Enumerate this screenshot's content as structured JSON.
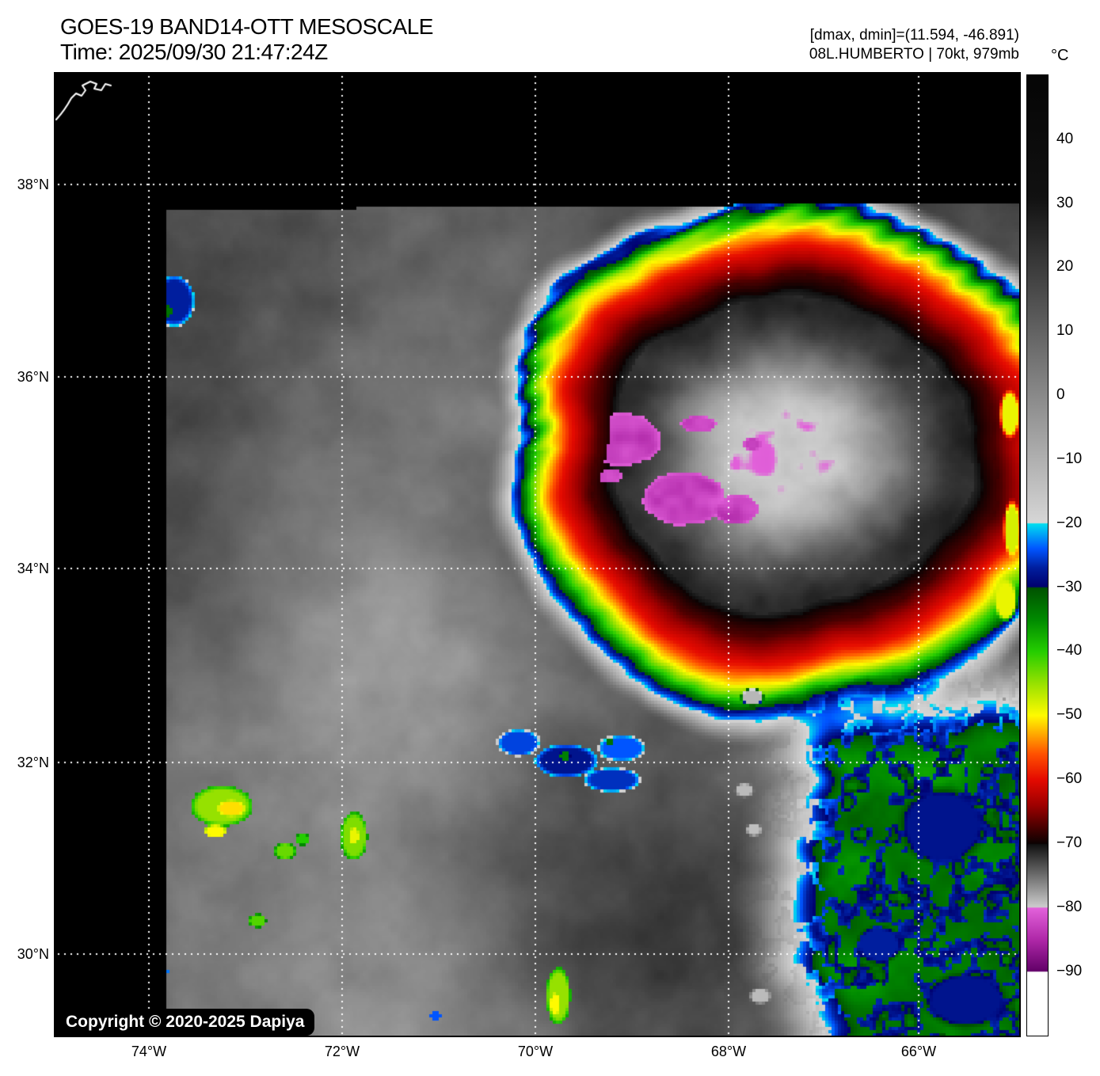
{
  "header": {
    "title": "GOES-19 BAND14-OTT MESOSCALE",
    "time": "Time: 2025/09/30 21:47:24Z",
    "readout": "[dmax, dmin]=(11.594, -46.891)",
    "storm": "08L.HUMBERTO | 70kt, 979mb"
  },
  "map": {
    "copyright": "Copyright © 2020-2025 Dapiya",
    "lat_labels": [
      "38°N",
      "36°N",
      "34°N",
      "32°N",
      "30°N"
    ],
    "lon_labels": [
      "74°W",
      "72°W",
      "70°W",
      "68°W",
      "66°W"
    ]
  },
  "colorbar": {
    "unit": "°C",
    "ticks": [
      "40",
      "30",
      "20",
      "10",
      "0",
      "−10",
      "−20",
      "−30",
      "−40",
      "−50",
      "−60",
      "−70",
      "−80",
      "−90"
    ]
  }
}
